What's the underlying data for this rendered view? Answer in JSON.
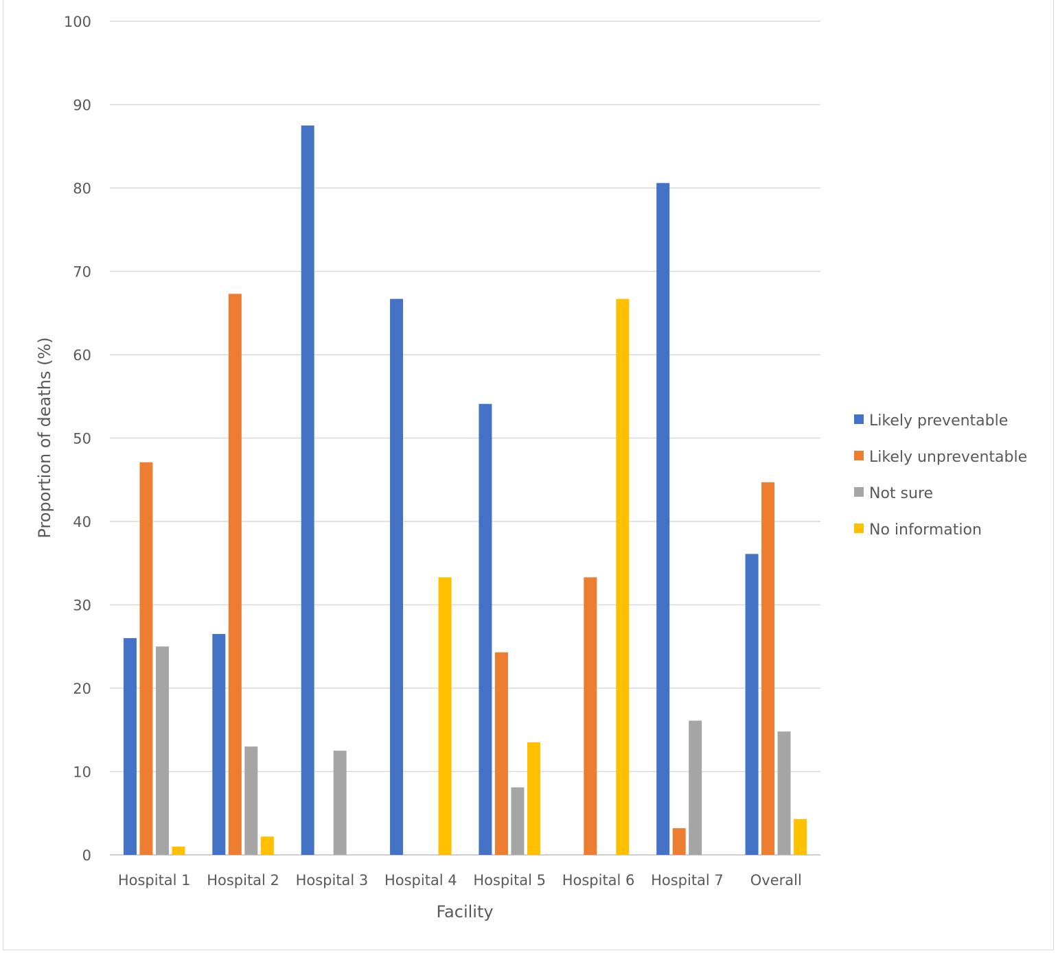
{
  "chart_data": {
    "type": "bar",
    "title": "",
    "xlabel": "Facility",
    "ylabel": "Proportion of deaths (%)",
    "ylim": [
      0,
      100
    ],
    "yticks": [
      0,
      10,
      20,
      30,
      40,
      50,
      60,
      70,
      80,
      90,
      100
    ],
    "grid": true,
    "legend_position": "right",
    "categories": [
      "Hospital 1",
      "Hospital 2",
      "Hospital 3",
      "Hospital 4",
      "Hospital 5",
      "Hospital 6",
      "Hospital 7",
      "Overall"
    ],
    "series": [
      {
        "name": "Likely preventable",
        "color": "#4472c4",
        "values": [
          26.0,
          26.5,
          87.5,
          66.7,
          54.1,
          0,
          80.6,
          36.1
        ]
      },
      {
        "name": "Likely unpreventable",
        "color": "#ed7d31",
        "values": [
          47.1,
          67.3,
          0,
          0,
          24.3,
          33.3,
          3.2,
          44.7
        ]
      },
      {
        "name": "Not sure",
        "color": "#a5a5a5",
        "values": [
          25.0,
          13.0,
          12.5,
          0,
          8.1,
          0,
          16.1,
          14.8
        ]
      },
      {
        "name": "No information",
        "color": "#ffc000",
        "values": [
          1.0,
          2.2,
          0,
          33.3,
          13.5,
          66.7,
          0,
          4.3
        ]
      }
    ]
  }
}
